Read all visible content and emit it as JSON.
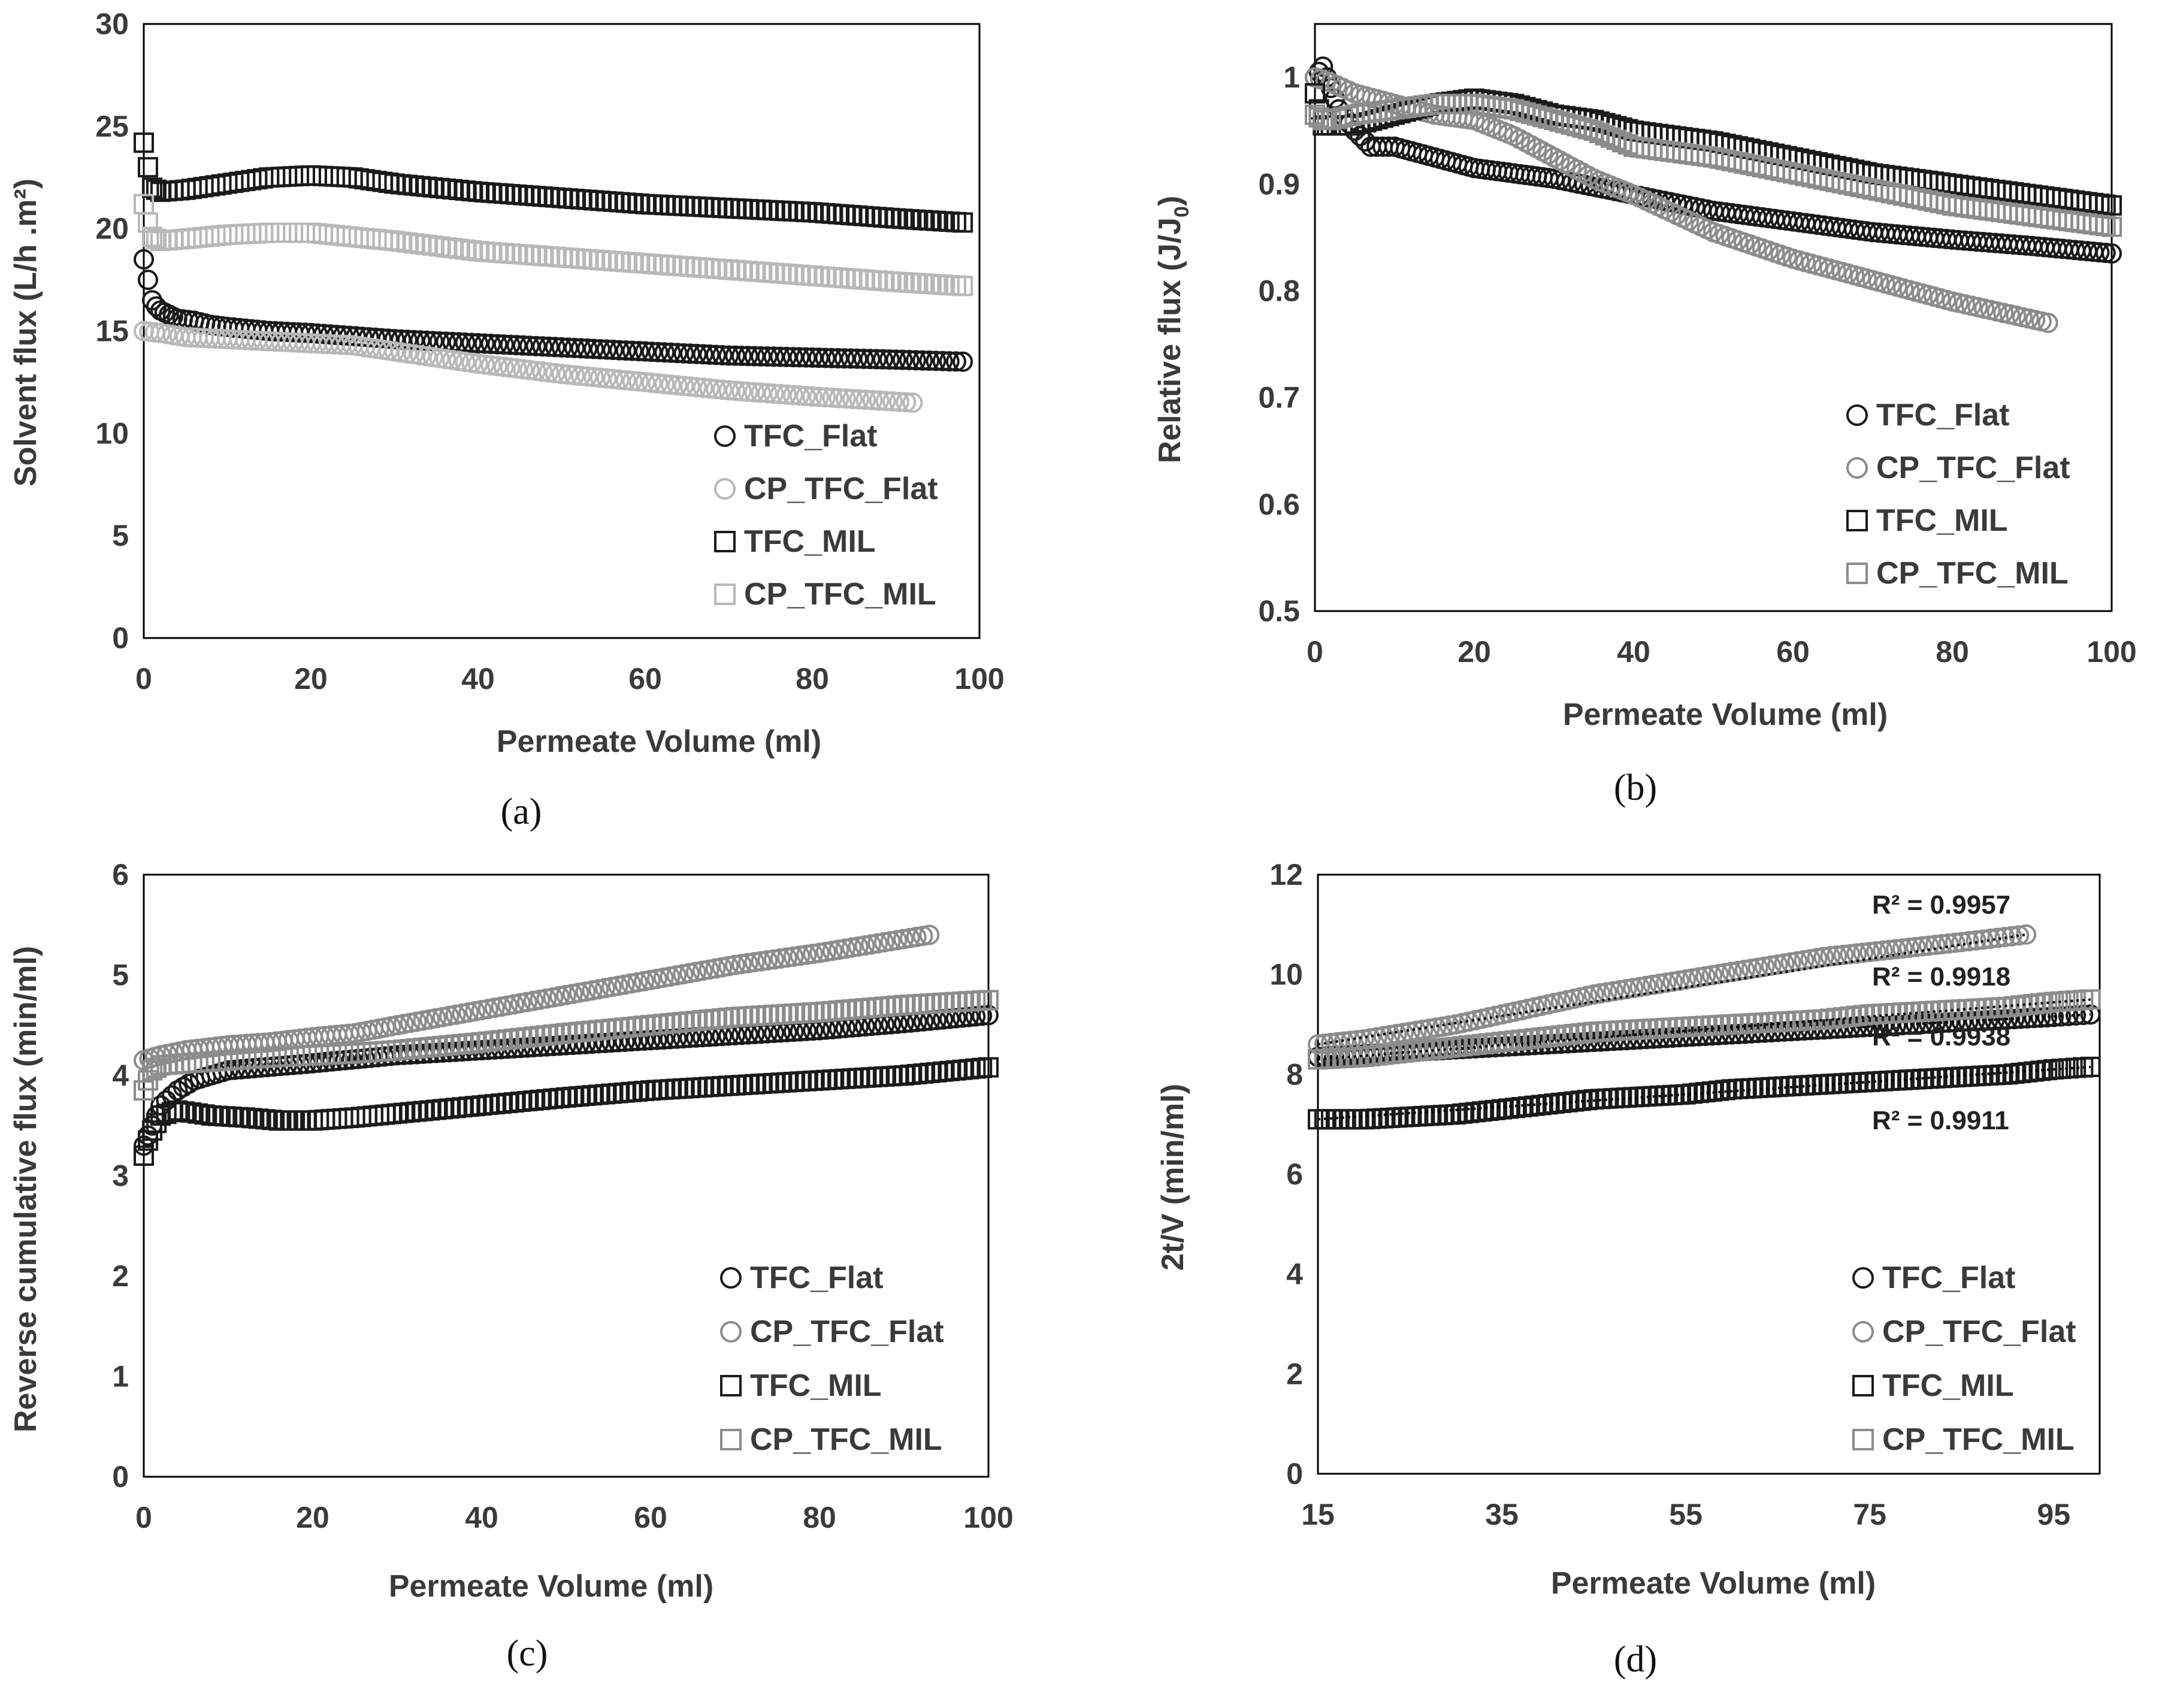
{
  "figure": {
    "description": "Four-panel flux figure"
  },
  "colors": {
    "black_series": "#1a1a1a",
    "gray_series": "#8c8c8c",
    "light_gray_series": "#b8b8b8",
    "axis": "#000000",
    "text": "#3a3a3a"
  },
  "chart_data": [
    {
      "id": "a",
      "type": "scatter",
      "panel_label": "(a)",
      "xlabel": "Permeate Volume (ml)",
      "ylabel": "Solvent flux (L/h .m²)",
      "xlim": [
        0,
        100
      ],
      "ylim": [
        0,
        30
      ],
      "xticks": [
        "0",
        "20",
        "40",
        "60",
        "80",
        "100"
      ],
      "yticks": [
        "0",
        "5",
        "10",
        "15",
        "20",
        "25",
        "30"
      ],
      "legend_position": "bottom-right",
      "series": [
        {
          "name": "TFC_Flat",
          "marker": "circle",
          "color": "#1a1a1a",
          "x": [
            0,
            0.5,
            1,
            1.5,
            2,
            3,
            4,
            6,
            8,
            10,
            15,
            20,
            30,
            40,
            50,
            60,
            70,
            80,
            90,
            98
          ],
          "y": [
            18.5,
            17.5,
            16.5,
            16.2,
            16.0,
            15.8,
            15.6,
            15.5,
            15.3,
            15.2,
            15.0,
            14.9,
            14.6,
            14.4,
            14.2,
            14.0,
            13.8,
            13.7,
            13.6,
            13.5
          ]
        },
        {
          "name": "CP_TFC_Flat",
          "marker": "circle",
          "color": "#b8b8b8",
          "x": [
            0,
            2,
            5,
            10,
            15,
            20,
            25,
            30,
            40,
            50,
            60,
            70,
            80,
            92
          ],
          "y": [
            15.0,
            14.9,
            14.7,
            14.6,
            14.5,
            14.4,
            14.3,
            14.0,
            13.4,
            12.9,
            12.5,
            12.1,
            11.8,
            11.5
          ]
        },
        {
          "name": "TFC_MIL",
          "marker": "square",
          "color": "#1a1a1a",
          "x": [
            0,
            0.5,
            1,
            2,
            5,
            10,
            15,
            20,
            25,
            30,
            40,
            50,
            60,
            70,
            80,
            90,
            98
          ],
          "y": [
            24.2,
            23.0,
            22.0,
            21.8,
            21.9,
            22.2,
            22.5,
            22.6,
            22.5,
            22.2,
            21.8,
            21.5,
            21.2,
            21.0,
            20.8,
            20.5,
            20.3
          ]
        },
        {
          "name": "CP_TFC_MIL",
          "marker": "square",
          "color": "#b8b8b8",
          "x": [
            0,
            0.5,
            1,
            2,
            5,
            10,
            15,
            20,
            25,
            30,
            40,
            50,
            60,
            70,
            80,
            90,
            98
          ],
          "y": [
            21.2,
            20.3,
            19.6,
            19.4,
            19.5,
            19.7,
            19.8,
            19.8,
            19.6,
            19.4,
            18.9,
            18.6,
            18.3,
            18.0,
            17.7,
            17.4,
            17.2
          ]
        }
      ]
    },
    {
      "id": "b",
      "type": "scatter",
      "panel_label": "(b)",
      "xlabel": "Permeate Volume (ml)",
      "ylabel": "Relative flux (J/J",
      "ylabel_sub": "0",
      "ylabel_end": ")",
      "xlim": [
        0,
        100
      ],
      "ylim": [
        0.5,
        1.05
      ],
      "xticks": [
        "0",
        "20",
        "40",
        "60",
        "80",
        "100"
      ],
      "yticks": [
        "0.5",
        "0.6",
        "0.7",
        "0.8",
        "0.9",
        "1"
      ],
      "ytick_values": [
        0.5,
        0.6,
        0.7,
        0.8,
        0.9,
        1.0
      ],
      "legend_position": "bottom-right",
      "series": [
        {
          "name": "TFC_Flat",
          "marker": "circle",
          "color": "#1a1a1a",
          "x": [
            0,
            1,
            2,
            3,
            5,
            7,
            10,
            15,
            20,
            25,
            30,
            40,
            50,
            60,
            70,
            80,
            90,
            100
          ],
          "y": [
            1.0,
            1.01,
            0.99,
            0.97,
            0.95,
            0.935,
            0.935,
            0.925,
            0.915,
            0.91,
            0.905,
            0.89,
            0.875,
            0.865,
            0.855,
            0.848,
            0.842,
            0.835
          ]
        },
        {
          "name": "CP_TFC_Flat",
          "marker": "circle",
          "color": "#8c8c8c",
          "x": [
            0,
            2,
            5,
            10,
            15,
            20,
            25,
            30,
            35,
            40,
            50,
            60,
            70,
            80,
            92
          ],
          "y": [
            1.0,
            0.995,
            0.985,
            0.975,
            0.965,
            0.96,
            0.945,
            0.925,
            0.905,
            0.89,
            0.855,
            0.83,
            0.81,
            0.79,
            0.77
          ]
        },
        {
          "name": "TFC_MIL",
          "marker": "square",
          "color": "#1a1a1a",
          "x": [
            0,
            1,
            2,
            5,
            10,
            15,
            20,
            25,
            30,
            35,
            40,
            50,
            60,
            70,
            80,
            90,
            100
          ],
          "y": [
            0.985,
            0.955,
            0.955,
            0.955,
            0.965,
            0.975,
            0.98,
            0.975,
            0.965,
            0.96,
            0.95,
            0.94,
            0.925,
            0.91,
            0.9,
            0.89,
            0.88
          ]
        },
        {
          "name": "CP_TFC_MIL",
          "marker": "square",
          "color": "#8c8c8c",
          "x": [
            0,
            1,
            2,
            5,
            10,
            15,
            20,
            25,
            30,
            35,
            40,
            50,
            60,
            70,
            80,
            90,
            100
          ],
          "y": [
            0.965,
            0.96,
            0.96,
            0.965,
            0.97,
            0.975,
            0.975,
            0.97,
            0.96,
            0.95,
            0.935,
            0.925,
            0.91,
            0.895,
            0.88,
            0.87,
            0.86
          ]
        }
      ]
    },
    {
      "id": "c",
      "type": "scatter",
      "panel_label": "(c)",
      "xlabel": "Permeate Volume (ml)",
      "ylabel": "Reverse cumulative flux (min/ml)",
      "xlim": [
        0,
        100
      ],
      "ylim": [
        0,
        6
      ],
      "xticks": [
        "0",
        "20",
        "40",
        "60",
        "80",
        "100"
      ],
      "yticks": [
        "0",
        "1",
        "2",
        "3",
        "4",
        "5",
        "6"
      ],
      "legend_position": "bottom-right",
      "series": [
        {
          "name": "TFC_Flat",
          "marker": "circle",
          "color": "#1a1a1a",
          "x": [
            0,
            1,
            2,
            4,
            6,
            8,
            10,
            20,
            30,
            40,
            50,
            60,
            70,
            80,
            90,
            100
          ],
          "y": [
            3.3,
            3.5,
            3.7,
            3.85,
            3.95,
            4.0,
            4.05,
            4.12,
            4.2,
            4.25,
            4.3,
            4.35,
            4.4,
            4.45,
            4.52,
            4.6
          ]
        },
        {
          "name": "CP_TFC_Flat",
          "marker": "circle",
          "color": "#8c8c8c",
          "x": [
            0,
            2,
            5,
            10,
            15,
            20,
            25,
            30,
            40,
            50,
            60,
            70,
            80,
            93
          ],
          "y": [
            4.15,
            4.2,
            4.25,
            4.3,
            4.33,
            4.38,
            4.42,
            4.5,
            4.65,
            4.8,
            4.95,
            5.1,
            5.22,
            5.4
          ]
        },
        {
          "name": "TFC_MIL",
          "marker": "square",
          "color": "#1a1a1a",
          "x": [
            0,
            0.5,
            1,
            2,
            4,
            8,
            12,
            16,
            20,
            25,
            30,
            40,
            50,
            60,
            70,
            80,
            90,
            100
          ],
          "y": [
            3.2,
            3.35,
            3.45,
            3.6,
            3.65,
            3.6,
            3.58,
            3.55,
            3.55,
            3.58,
            3.62,
            3.7,
            3.78,
            3.85,
            3.9,
            3.95,
            4.0,
            4.08
          ]
        },
        {
          "name": "CP_TFC_MIL",
          "marker": "square",
          "color": "#8c8c8c",
          "x": [
            0,
            1,
            2,
            5,
            10,
            15,
            20,
            25,
            30,
            40,
            50,
            60,
            70,
            80,
            90,
            100
          ],
          "y": [
            3.85,
            4.05,
            4.1,
            4.12,
            4.15,
            4.18,
            4.2,
            4.22,
            4.25,
            4.33,
            4.42,
            4.5,
            4.58,
            4.63,
            4.7,
            4.75
          ]
        }
      ]
    },
    {
      "id": "d",
      "type": "scatter",
      "panel_label": "(d)",
      "xlabel": "Permeate Volume  (ml)",
      "ylabel": "2t/V (min/ml)",
      "xlim": [
        15,
        100
      ],
      "ylim": [
        0,
        12
      ],
      "xticks": [
        "15",
        "35",
        "55",
        "75",
        "95"
      ],
      "xtick_values": [
        15,
        35,
        55,
        75,
        95
      ],
      "yticks": [
        "0",
        "2",
        "4",
        "6",
        "8",
        "10",
        "12"
      ],
      "legend_position": "bottom-right",
      "annotations": [
        "R² = 0.9957",
        "R² = 0.9918",
        "R² = 0.9938",
        "R² = 0.9911"
      ],
      "series": [
        {
          "name": "TFC_Flat",
          "marker": "circle",
          "color": "#1a1a1a",
          "x": [
            15,
            20,
            25,
            30,
            35,
            40,
            45,
            50,
            55,
            60,
            65,
            70,
            75,
            80,
            85,
            90,
            95,
            99
          ],
          "y": [
            8.35,
            8.4,
            8.45,
            8.5,
            8.55,
            8.6,
            8.65,
            8.7,
            8.75,
            8.8,
            8.85,
            8.9,
            8.95,
            9.0,
            9.05,
            9.1,
            9.15,
            9.2
          ]
        },
        {
          "name": "CP_TFC_Flat",
          "marker": "circle",
          "color": "#8c8c8c",
          "x": [
            15,
            20,
            25,
            30,
            35,
            40,
            45,
            50,
            55,
            60,
            65,
            70,
            75,
            80,
            85,
            92
          ],
          "y": [
            8.6,
            8.7,
            8.85,
            9.0,
            9.2,
            9.4,
            9.6,
            9.75,
            9.9,
            10.05,
            10.2,
            10.35,
            10.45,
            10.55,
            10.65,
            10.8
          ]
        },
        {
          "name": "TFC_MIL",
          "marker": "square",
          "color": "#1a1a1a",
          "x": [
            15,
            20,
            25,
            30,
            35,
            40,
            45,
            50,
            55,
            60,
            65,
            70,
            75,
            80,
            85,
            90,
            95,
            99
          ],
          "y": [
            7.1,
            7.1,
            7.15,
            7.2,
            7.3,
            7.4,
            7.5,
            7.55,
            7.6,
            7.7,
            7.75,
            7.8,
            7.85,
            7.9,
            7.95,
            8.0,
            8.1,
            8.15
          ]
        },
        {
          "name": "CP_TFC_MIL",
          "marker": "square",
          "color": "#8c8c8c",
          "x": [
            15,
            20,
            25,
            30,
            35,
            40,
            45,
            50,
            55,
            60,
            65,
            70,
            75,
            80,
            85,
            90,
            95,
            99
          ],
          "y": [
            8.3,
            8.35,
            8.45,
            8.55,
            8.65,
            8.75,
            8.85,
            8.9,
            8.95,
            9.0,
            9.05,
            9.1,
            9.2,
            9.25,
            9.3,
            9.35,
            9.45,
            9.5
          ]
        }
      ]
    }
  ]
}
